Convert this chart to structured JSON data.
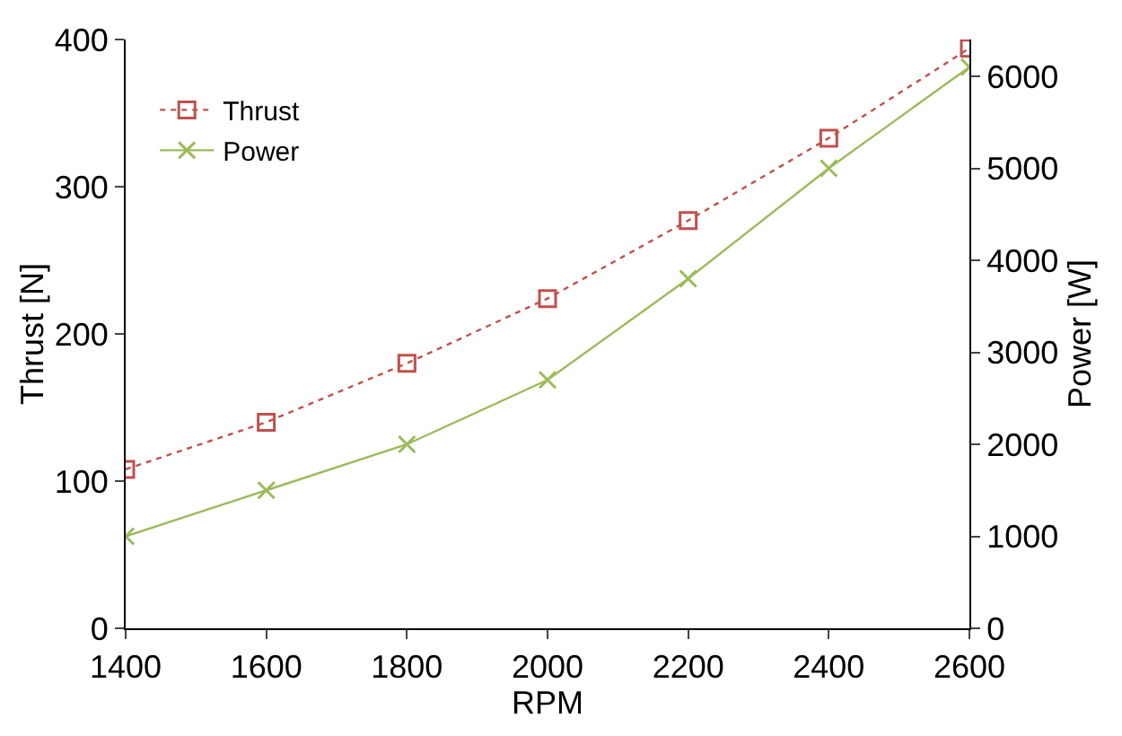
{
  "chart_data": {
    "type": "line",
    "xlabel": "RPM",
    "ylabel": "Thrust [N]",
    "y2label": "Power [W]",
    "x": [
      1400,
      1600,
      1800,
      2000,
      2200,
      2400,
      2600
    ],
    "xlim": [
      1400,
      2600
    ],
    "xticks": [
      1400,
      1600,
      1800,
      2000,
      2200,
      2400,
      2600
    ],
    "ylim": [
      0,
      400
    ],
    "yticks": [
      0,
      100,
      200,
      300,
      400
    ],
    "y2lim": [
      0,
      6400
    ],
    "y2ticks": [
      0,
      1000,
      2000,
      3000,
      4000,
      5000,
      6000
    ],
    "grid": false,
    "legend": "top left",
    "series": [
      {
        "name": "Thrust",
        "color": "#c0504d",
        "values": [
          108,
          140,
          180,
          224,
          277,
          333,
          394
        ],
        "marker": "square",
        "line_style": "dotted"
      },
      {
        "name": "Power",
        "color": "#9bbb59",
        "values": [
          1000,
          1500,
          2000,
          2700,
          3800,
          5000,
          6100
        ],
        "marker": "cross",
        "line_style": "solid",
        "axis": "y2"
      }
    ]
  }
}
